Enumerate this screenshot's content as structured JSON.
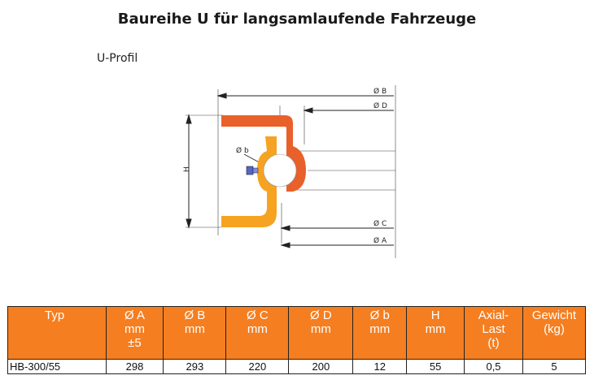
{
  "page": {
    "title": "Baureihe U für langsamlaufende Fahrzeuge",
    "subtitle": "U-Profil"
  },
  "drawing": {
    "labels": {
      "B": "Ø B",
      "D": "Ø D",
      "b": "Ø b",
      "H": "H",
      "C": "Ø C",
      "A": "Ø A"
    },
    "colors": {
      "upper_ring": "#e8602a",
      "lower_ring": "#f5a321",
      "bolt": "#5566c8",
      "lines": "#333333"
    }
  },
  "table": {
    "header": {
      "typ": [
        "Typ"
      ],
      "A": [
        "Ø A",
        "mm",
        "±5"
      ],
      "B": [
        "Ø B",
        "mm"
      ],
      "C": [
        "Ø C",
        "mm"
      ],
      "D": [
        "Ø D",
        "mm"
      ],
      "b": [
        "Ø b",
        "mm"
      ],
      "H": [
        "H",
        "mm"
      ],
      "last": [
        "Axial-",
        "Last",
        "(t)"
      ],
      "gewicht": [
        "Gewicht",
        "(kg)"
      ]
    },
    "rows": [
      {
        "typ": "HB-300/55",
        "A": "298",
        "B": "293",
        "C": "220",
        "D": "200",
        "b": "12",
        "H": "55",
        "last": "0,5",
        "gewicht": "5"
      }
    ],
    "colors": {
      "header_bg": "#f57e20",
      "header_text": "#ffffff",
      "border": "#222222"
    }
  }
}
